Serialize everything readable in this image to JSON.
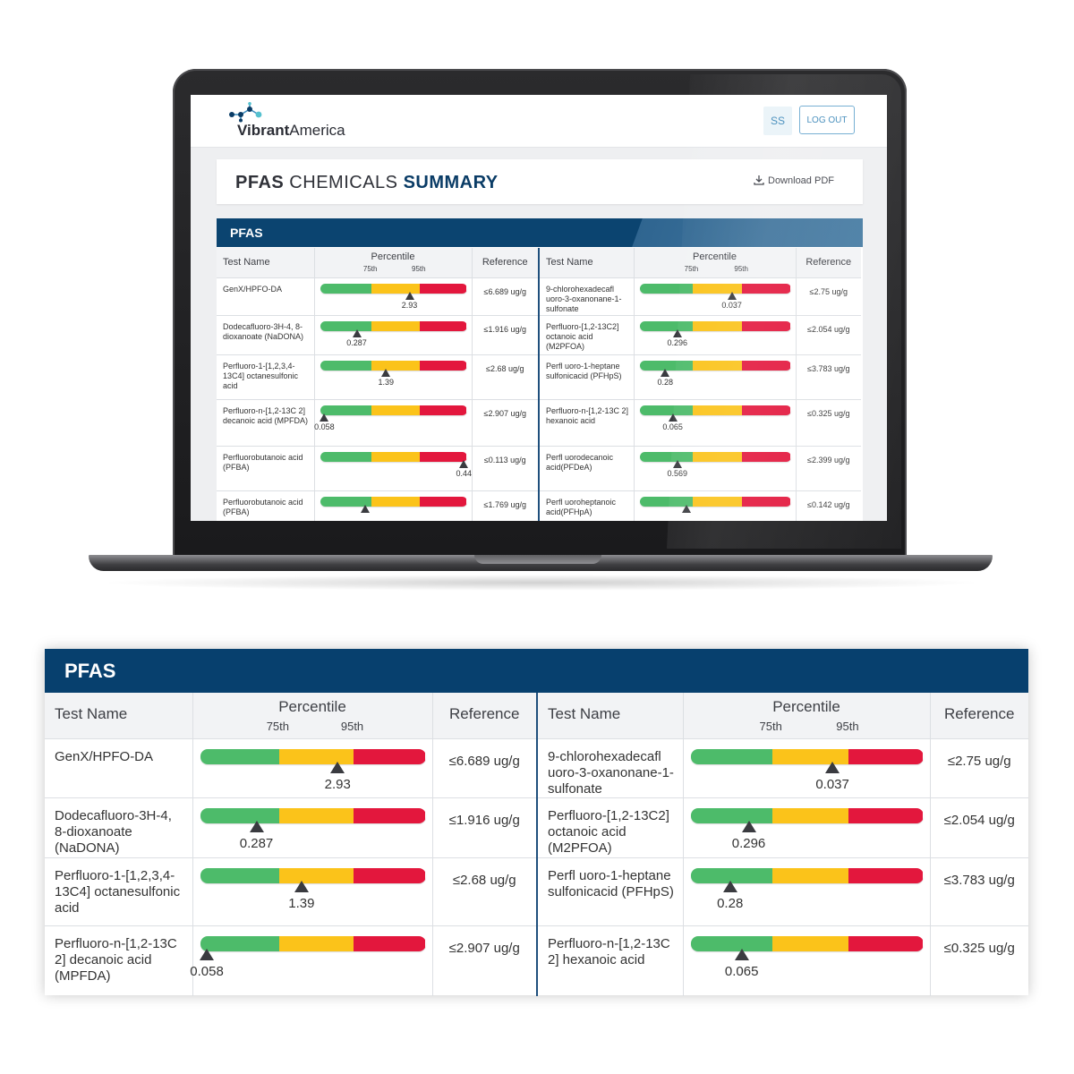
{
  "app": {
    "logo_text_bold": "Vibrant",
    "logo_text_rest": "America",
    "user_initials": "SS",
    "logout_label": "LOG OUT"
  },
  "summary": {
    "title_part1": "PFAS",
    "title_part2": " CHEMICALS ",
    "title_part3": "SUMMARY",
    "download_label": "Download PDF"
  },
  "panel": {
    "title": "PFAS",
    "col_test_name": "Test Name",
    "col_percentile": "Percentile",
    "tick_75": "75th",
    "tick_95": "95th",
    "col_reference": "Reference"
  },
  "colors": {
    "green": "#4dbb6a",
    "yellow": "#fbc31a",
    "red": "#e3173d",
    "header_blue": "#07406e"
  },
  "screen_rows": [
    {
      "left": {
        "name": "GenX/HPFO-DA",
        "value": "2.93",
        "pos": 0.61,
        "ref": "≤6.689 ug/g"
      },
      "right": {
        "name": "9-chlorohexadecafl uoro-3-oxanonane-1-sulfonate",
        "value": "0.037",
        "pos": 0.61,
        "ref": "≤2.75 ug/g"
      }
    },
    {
      "left": {
        "name": "Dodecafluoro-3H-4, 8-dioxanoate (NaDONA)",
        "value": "0.287",
        "pos": 0.25,
        "ref": "≤1.916 ug/g"
      },
      "right": {
        "name": "Perfluoro-[1,2-13C2] octanoic acid (M2PFOA)",
        "value": "0.296",
        "pos": 0.25,
        "ref": "≤2.054 ug/g"
      }
    },
    {
      "left": {
        "name": "Perfluoro-1-[1,2,3,4-13C4] octanesulfonic acid",
        "value": "1.39",
        "pos": 0.45,
        "ref": "≤2.68 ug/g"
      },
      "right": {
        "name": "Perfl uoro-1-heptane sulfonicacid (PFHpS)",
        "value": "0.28",
        "pos": 0.17,
        "ref": "≤3.783 ug/g"
      }
    },
    {
      "left": {
        "name": "Perfluoro-n-[1,2-13C 2] decanoic acid (MPFDA)",
        "value": "0.058",
        "pos": 0.03,
        "ref": "≤2.907 ug/g"
      },
      "right": {
        "name": "Perfluoro-n-[1,2-13C 2] hexanoic acid",
        "value": "0.065",
        "pos": 0.22,
        "ref": "≤0.325 ug/g"
      }
    },
    {
      "left": {
        "name": "Perfluorobutanoic acid (PFBA)",
        "value": "0.44",
        "pos": 0.98,
        "ref": "≤0.113 ug/g"
      },
      "right": {
        "name": "Perfl uorodecanoic acid(PFDeA)",
        "value": "0.569",
        "pos": 0.25,
        "ref": "≤2.399 ug/g"
      }
    },
    {
      "left": {
        "name": "Perfluorobutanoic acid (PFBA)",
        "value": "",
        "pos": 0.31,
        "ref": "≤1.769 ug/g"
      },
      "right": {
        "name": "Perfl uoroheptanoic acid(PFHpA)",
        "value": "",
        "pos": 0.31,
        "ref": "≤0.142 ug/g"
      }
    }
  ],
  "detail_rows": [
    {
      "left": {
        "name": "GenX/HPFO-DA",
        "value": "2.93",
        "pos": 0.61,
        "ref": "≤6.689 ug/g"
      },
      "right": {
        "name": "9-chlorohexadecafl uoro-3-oxanonane-1-sulfonate",
        "value": "0.037",
        "pos": 0.61,
        "ref": "≤2.75 ug/g"
      }
    },
    {
      "left": {
        "name": "Dodecafluoro-3H-4, 8-dioxanoate (NaDONA)",
        "value": "0.287",
        "pos": 0.25,
        "ref": "≤1.916 ug/g"
      },
      "right": {
        "name": "Perfluoro-[1,2-13C2] octanoic acid (M2PFOA)",
        "value": "0.296",
        "pos": 0.25,
        "ref": "≤2.054 ug/g"
      }
    },
    {
      "left": {
        "name": "Perfluoro-1-[1,2,3,4-13C4] octanesulfonic acid",
        "value": "1.39",
        "pos": 0.45,
        "ref": "≤2.68 ug/g"
      },
      "right": {
        "name": "Perfl uoro-1-heptane sulfonicacid (PFHpS)",
        "value": "0.28",
        "pos": 0.17,
        "ref": "≤3.783 ug/g"
      }
    },
    {
      "left": {
        "name": "Perfluoro-n-[1,2-13C 2] decanoic acid (MPFDA)",
        "value": "0.058",
        "pos": 0.03,
        "ref": "≤2.907 ug/g"
      },
      "right": {
        "name": "Perfluoro-n-[1,2-13C 2] hexanoic acid",
        "value": "0.065",
        "pos": 0.22,
        "ref": "≤0.325 ug/g"
      }
    }
  ]
}
